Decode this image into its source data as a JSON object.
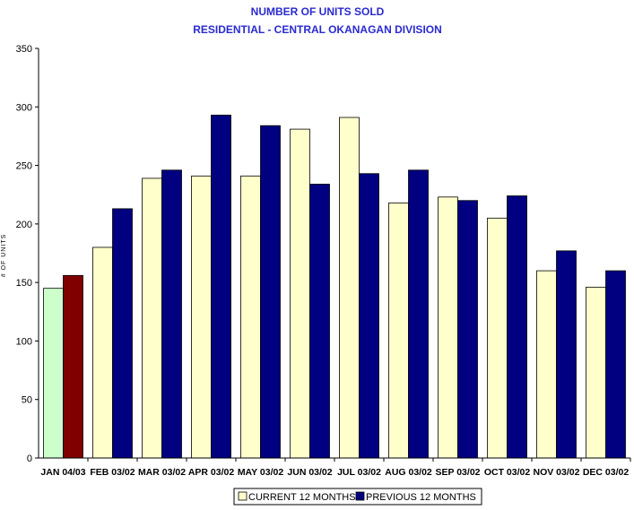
{
  "chart_data": {
    "type": "bar",
    "title": "NUMBER OF UNITS SOLD",
    "subtitle": "RESIDENTIAL - CENTRAL OKANAGAN DIVISION",
    "ylabel": "# OF UNITS",
    "xlabel": "",
    "ylim": [
      0,
      350
    ],
    "yticks": [
      0,
      50,
      100,
      150,
      200,
      250,
      300,
      350
    ],
    "grid": false,
    "legend_position": "bottom",
    "categories": [
      "JAN 04/03",
      "FEB 03/02",
      "MAR 03/02",
      "APR 03/02",
      "MAY 03/02",
      "JUN 03/02",
      "JUL 03/02",
      "AUG 03/02",
      "SEP 03/02",
      "OCT 03/02",
      "NOV 03/02",
      "DEC 03/02"
    ],
    "series": [
      {
        "name": "CURRENT 12 MONTHS",
        "color": "#ffffcc",
        "values": [
          145,
          180,
          239,
          241,
          241,
          281,
          291,
          218,
          223,
          205,
          160,
          146
        ]
      },
      {
        "name": "PREVIOUS 12 MONTHS",
        "color": "#000080",
        "values": [
          156,
          213,
          246,
          293,
          284,
          234,
          243,
          246,
          220,
          224,
          177,
          160
        ]
      }
    ],
    "highlight": {
      "category_index": 0,
      "colors": [
        "#ccffcc",
        "#800000"
      ]
    }
  }
}
